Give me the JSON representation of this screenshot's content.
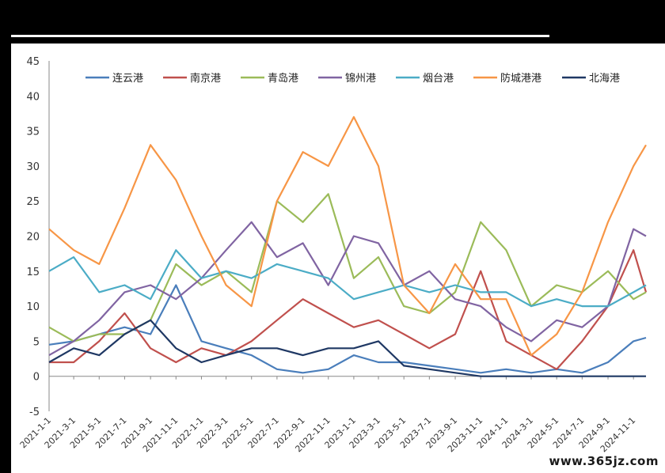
{
  "chart_data": {
    "type": "line",
    "title": "",
    "xlabel": "",
    "ylabel": "",
    "ylim": [
      -5,
      45
    ],
    "yticks": [
      -5,
      0,
      5,
      10,
      15,
      20,
      25,
      30,
      35,
      40,
      45
    ],
    "xlim": [
      "2021-1-1",
      "2024-12-1"
    ],
    "x_tick_labels": [
      "2021-1-1",
      "2021-3-1",
      "2021-5-1",
      "2021-7-1",
      "2021-9-1",
      "2021-11-1",
      "2022-1-1",
      "2022-3-1",
      "2022-5-1",
      "2022-7-1",
      "2022-9-1",
      "2022-11-1",
      "2023-1-1",
      "2023-3-1",
      "2023-5-1",
      "2023-7-1",
      "2023-9-1",
      "2023-11-1",
      "2024-1-1",
      "2024-3-1",
      "2024-5-1",
      "2024-7-1",
      "2024-9-1",
      "2024-11-1"
    ],
    "grid": false,
    "legend_position": "top",
    "series": [
      {
        "name": "连云港",
        "color": "#4a7ebb",
        "x": [
          "2021-1-1",
          "2021-3-1",
          "2021-5-1",
          "2021-7-1",
          "2021-9-1",
          "2021-11-1",
          "2022-1-1",
          "2022-3-1",
          "2022-5-1",
          "2022-7-1",
          "2022-9-1",
          "2022-11-1",
          "2023-1-1",
          "2023-3-1",
          "2023-5-1",
          "2023-7-1",
          "2023-9-1",
          "2023-11-1",
          "2024-1-1",
          "2024-3-1",
          "2024-5-1",
          "2024-7-1",
          "2024-9-1",
          "2024-11-1",
          "2024-12-1"
        ],
        "values": [
          4.5,
          5,
          6,
          7,
          6,
          13,
          5,
          4,
          3,
          1,
          0.5,
          1,
          3,
          2,
          2,
          1.5,
          1,
          0.5,
          1,
          0.5,
          1,
          0.5,
          2,
          5,
          5.5
        ]
      },
      {
        "name": "南京港",
        "color": "#c0504d",
        "x": [
          "2021-1-1",
          "2021-3-1",
          "2021-5-1",
          "2021-7-1",
          "2021-9-1",
          "2021-11-1",
          "2022-1-1",
          "2022-3-1",
          "2022-5-1",
          "2022-7-1",
          "2022-9-1",
          "2022-11-1",
          "2023-1-1",
          "2023-3-1",
          "2023-5-1",
          "2023-7-1",
          "2023-9-1",
          "2023-11-1",
          "2024-1-1",
          "2024-3-1",
          "2024-5-1",
          "2024-7-1",
          "2024-9-1",
          "2024-11-1",
          "2024-12-1"
        ],
        "values": [
          2,
          2,
          5,
          9,
          4,
          2,
          4,
          3,
          5,
          8,
          11,
          9,
          7,
          8,
          6,
          4,
          6,
          15,
          5,
          3,
          1,
          5,
          10,
          18,
          12
        ]
      },
      {
        "name": "青岛港",
        "color": "#9bbb59",
        "x": [
          "2021-1-1",
          "2021-3-1",
          "2021-5-1",
          "2021-7-1",
          "2021-9-1",
          "2021-11-1",
          "2022-1-1",
          "2022-3-1",
          "2022-5-1",
          "2022-7-1",
          "2022-9-1",
          "2022-11-1",
          "2023-1-1",
          "2023-3-1",
          "2023-5-1",
          "2023-7-1",
          "2023-9-1",
          "2023-11-1",
          "2024-1-1",
          "2024-3-1",
          "2024-5-1",
          "2024-7-1",
          "2024-9-1",
          "2024-11-1",
          "2024-12-1"
        ],
        "values": [
          7,
          5,
          6,
          6,
          8,
          16,
          13,
          15,
          12,
          25,
          22,
          26,
          14,
          17,
          10,
          9,
          12,
          22,
          18,
          10,
          13,
          12,
          15,
          11,
          12
        ]
      },
      {
        "name": "锦州港",
        "color": "#8064a2",
        "x": [
          "2021-1-1",
          "2021-3-1",
          "2021-5-1",
          "2021-7-1",
          "2021-9-1",
          "2021-11-1",
          "2022-1-1",
          "2022-3-1",
          "2022-5-1",
          "2022-7-1",
          "2022-9-1",
          "2022-11-1",
          "2023-1-1",
          "2023-3-1",
          "2023-5-1",
          "2023-7-1",
          "2023-9-1",
          "2023-11-1",
          "2024-1-1",
          "2024-3-1",
          "2024-5-1",
          "2024-7-1",
          "2024-9-1",
          "2024-11-1",
          "2024-12-1"
        ],
        "values": [
          3,
          5,
          8,
          12,
          13,
          11,
          14,
          18,
          22,
          17,
          19,
          13,
          20,
          19,
          13,
          15,
          11,
          10,
          7,
          5,
          8,
          7,
          10,
          21,
          20
        ]
      },
      {
        "name": "烟台港",
        "color": "#4bacc6",
        "x": [
          "2021-1-1",
          "2021-3-1",
          "2021-5-1",
          "2021-7-1",
          "2021-9-1",
          "2021-11-1",
          "2022-1-1",
          "2022-3-1",
          "2022-5-1",
          "2022-7-1",
          "2022-9-1",
          "2022-11-1",
          "2023-1-1",
          "2023-3-1",
          "2023-5-1",
          "2023-7-1",
          "2023-9-1",
          "2023-11-1",
          "2024-1-1",
          "2024-3-1",
          "2024-5-1",
          "2024-7-1",
          "2024-9-1",
          "2024-11-1",
          "2024-12-1"
        ],
        "values": [
          15,
          17,
          12,
          13,
          11,
          18,
          14,
          15,
          14,
          16,
          15,
          14,
          11,
          12,
          13,
          12,
          13,
          12,
          12,
          10,
          11,
          10,
          10,
          12,
          13
        ]
      },
      {
        "name": "防城港港",
        "color": "#f79646",
        "x": [
          "2021-1-1",
          "2021-3-1",
          "2021-5-1",
          "2021-7-1",
          "2021-9-1",
          "2021-11-1",
          "2022-1-1",
          "2022-3-1",
          "2022-5-1",
          "2022-7-1",
          "2022-9-1",
          "2022-11-1",
          "2023-1-1",
          "2023-3-1",
          "2023-5-1",
          "2023-7-1",
          "2023-9-1",
          "2023-11-1",
          "2024-1-1",
          "2024-3-1",
          "2024-5-1",
          "2024-7-1",
          "2024-9-1",
          "2024-11-1",
          "2024-12-1"
        ],
        "values": [
          21,
          18,
          16,
          24,
          33,
          28,
          20,
          13,
          10,
          25,
          32,
          30,
          37,
          30,
          13,
          9,
          16,
          11,
          11,
          3,
          6,
          12,
          22,
          30,
          33
        ]
      },
      {
        "name": "北海港",
        "color": "#1f3864",
        "x": [
          "2021-1-1",
          "2021-3-1",
          "2021-5-1",
          "2021-7-1",
          "2021-9-1",
          "2021-11-1",
          "2022-1-1",
          "2022-3-1",
          "2022-5-1",
          "2022-7-1",
          "2022-9-1",
          "2022-11-1",
          "2023-1-1",
          "2023-3-1",
          "2023-5-1",
          "2023-7-1",
          "2023-9-1",
          "2023-11-1",
          "2024-1-1",
          "2024-3-1",
          "2024-5-1",
          "2024-7-1",
          "2024-9-1",
          "2024-11-1",
          "2024-12-1"
        ],
        "values": [
          2,
          4,
          3,
          6,
          8,
          4,
          2,
          3,
          4,
          4,
          3,
          4,
          4,
          5,
          1.5,
          1,
          0.5,
          0,
          0,
          0,
          0,
          0,
          0,
          0,
          0
        ]
      }
    ]
  },
  "watermark": "www.365jz.com"
}
